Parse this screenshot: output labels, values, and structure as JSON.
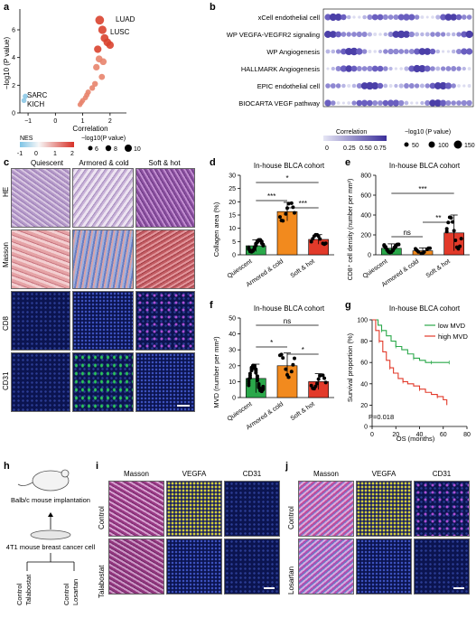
{
  "panel_labels": {
    "a": "a",
    "b": "b",
    "c": "c",
    "d": "d",
    "e": "e",
    "f": "f",
    "g": "g",
    "h": "h",
    "i": "i",
    "j": "j"
  },
  "panel_a": {
    "ylabel": "−log10 (P value)",
    "xlabel": "Correlation",
    "xticks": [
      "−1",
      "0",
      "1",
      "2"
    ],
    "yticks": [
      "0",
      "2",
      "4",
      "6"
    ],
    "labels": [
      "LUAD",
      "LUSC",
      "SARC",
      "KICH"
    ],
    "legend": {
      "nes_title": "NES",
      "nes_ticks": [
        "-1",
        "0",
        "1",
        "2"
      ],
      "p_title": "−log10(P value)",
      "p_sizes": [
        "6",
        "8",
        "10"
      ]
    }
  },
  "panel_b": {
    "rows": [
      "xCell endothelial cell",
      "WP VEGFA-VEGFR2 signaling",
      "WP Angiogenesis",
      "HALLMARK Angiogenesis",
      "EPIC endothelial cell",
      "BIOCARTA VEGF pathway"
    ],
    "legend": {
      "corr_title": "Correlation",
      "corr_ticks": [
        "0",
        "0.25",
        "0.50",
        "0.75"
      ],
      "p_title": "−log10 (P value)",
      "p_sizes": [
        "50",
        "100",
        "150"
      ]
    }
  },
  "panel_c": {
    "columns": [
      "Quiescent",
      "Armored & cold",
      "Soft & hot"
    ],
    "rows": [
      "HE",
      "Masson",
      "CD8",
      "CD31"
    ]
  },
  "panel_d": {
    "title": "In-house BLCA cohort",
    "ylabel": "Collagen area (%)",
    "yticks": [
      "0",
      "5",
      "10",
      "15",
      "20",
      "25",
      "30"
    ],
    "groups": [
      "Quiescent",
      "Armored & cold",
      "Soft & hot"
    ],
    "sig": [
      "***",
      "***",
      "*"
    ]
  },
  "panel_e": {
    "title": "In-house BLCA cohort",
    "ylabel": "CD8⁺ cell density (number per mm²)",
    "yticks": [
      "0",
      "200",
      "400",
      "600",
      "800"
    ],
    "groups": [
      "Quiescent",
      "Armored & cold",
      "Soft & hot"
    ],
    "sig": [
      "ns",
      "**",
      "***"
    ]
  },
  "panel_f": {
    "title": "In-house BLCA cohort",
    "ylabel": "MVD (number per mm²)",
    "yticks": [
      "0",
      "10",
      "20",
      "30",
      "40",
      "50"
    ],
    "groups": [
      "Quiescent",
      "Armored & cold",
      "Soft & hot"
    ],
    "sig": [
      "*",
      "*",
      "ns"
    ]
  },
  "panel_g": {
    "title": "In-house BLCA cohort",
    "ylabel": "Survival proportion (%)",
    "xlabel": "OS (months)",
    "xticks": [
      "0",
      "20",
      "40",
      "60",
      "80"
    ],
    "yticks": [
      "0",
      "20",
      "40",
      "60",
      "80",
      "100"
    ],
    "legend": [
      "low MVD",
      "high MVD"
    ],
    "pvalue": "P=0.018"
  },
  "panel_h": {
    "mouse": "Balb/c mouse implantation",
    "cell": "4T1 mouse breast cancer cell",
    "arms": [
      "Control",
      "Talabostat",
      "Control",
      "Losartan"
    ]
  },
  "panel_i": {
    "columns": [
      "Masson",
      "VEGFA",
      "CD31"
    ],
    "rows": [
      "Control",
      "Talabostat"
    ]
  },
  "panel_j": {
    "columns": [
      "Masson",
      "VEGFA",
      "CD31"
    ],
    "rows": [
      "Control",
      "Losartan"
    ]
  },
  "chart_data": [
    {
      "type": "scatter",
      "panel": "a",
      "xlabel": "Correlation",
      "ylabel": "−log10 (P value)",
      "xlim": [
        -1.3,
        2.6
      ],
      "ylim": [
        0,
        7.5
      ],
      "points": [
        [
          1.62,
          6.7,
          "LUAD"
        ],
        [
          1.72,
          6.0,
          "LUSC"
        ],
        [
          1.8,
          5.4,
          ""
        ],
        [
          1.9,
          5.1,
          ""
        ],
        [
          2.0,
          4.9,
          ""
        ],
        [
          1.55,
          4.6,
          ""
        ],
        [
          1.6,
          3.9,
          ""
        ],
        [
          1.75,
          3.7,
          ""
        ],
        [
          1.5,
          3.3,
          ""
        ],
        [
          1.7,
          2.6,
          ""
        ],
        [
          1.45,
          2.1,
          ""
        ],
        [
          1.35,
          1.8,
          ""
        ],
        [
          1.2,
          1.5,
          ""
        ],
        [
          1.15,
          1.3,
          ""
        ],
        [
          1.1,
          1.1,
          ""
        ],
        [
          1.0,
          0.9,
          ""
        ],
        [
          0.95,
          0.75,
          ""
        ],
        [
          0.9,
          0.6,
          ""
        ],
        [
          -1.1,
          1.2,
          "SARC"
        ],
        [
          -1.15,
          0.9,
          "KICH"
        ]
      ]
    },
    {
      "type": "bar",
      "panel": "d",
      "categories": [
        "Quiescent",
        "Armored & cold",
        "Soft & hot"
      ],
      "values": [
        3.4,
        16.3,
        5.8
      ],
      "errors": [
        2.2,
        3.5,
        1.8
      ],
      "colors": [
        "#2aa84a",
        "#f28a1e",
        "#e23a2a"
      ],
      "ylabel": "Collagen area (%)",
      "ylim": [
        0,
        30
      ]
    },
    {
      "type": "bar",
      "panel": "e",
      "categories": [
        "Quiescent",
        "Armored & cold",
        "Soft & hot"
      ],
      "values": [
        65,
        40,
        220
      ],
      "errors": [
        45,
        30,
        180
      ],
      "colors": [
        "#2aa84a",
        "#f28a1e",
        "#e23a2a"
      ],
      "ylabel": "CD8⁺ cell density (number per mm²)",
      "ylim": [
        0,
        800
      ]
    },
    {
      "type": "bar",
      "panel": "f",
      "categories": [
        "Quiescent",
        "Armored & cold",
        "Soft & hot"
      ],
      "values": [
        12,
        20,
        10
      ],
      "errors": [
        9,
        8,
        5
      ],
      "colors": [
        "#2aa84a",
        "#f28a1e",
        "#e23a2a"
      ],
      "ylabel": "MVD (number per mm²)",
      "ylim": [
        0,
        50
      ]
    },
    {
      "type": "line",
      "panel": "g",
      "xlabel": "OS (months)",
      "ylabel": "Survival proportion (%)",
      "xlim": [
        0,
        80
      ],
      "ylim": [
        0,
        100
      ],
      "series": [
        {
          "name": "low MVD",
          "color": "#2aa84a",
          "x": [
            0,
            5,
            8,
            12,
            16,
            20,
            25,
            30,
            35,
            40,
            45,
            50,
            55,
            60,
            65
          ],
          "y": [
            100,
            95,
            90,
            85,
            80,
            75,
            72,
            68,
            64,
            62,
            60,
            60,
            60,
            60,
            60
          ]
        },
        {
          "name": "high MVD",
          "color": "#e23a2a",
          "x": [
            0,
            3,
            6,
            9,
            12,
            15,
            18,
            22,
            26,
            30,
            35,
            40,
            45,
            50,
            55,
            60,
            63
          ],
          "y": [
            100,
            90,
            80,
            70,
            62,
            55,
            50,
            45,
            42,
            40,
            38,
            35,
            32,
            30,
            28,
            25,
            20
          ]
        }
      ]
    }
  ]
}
